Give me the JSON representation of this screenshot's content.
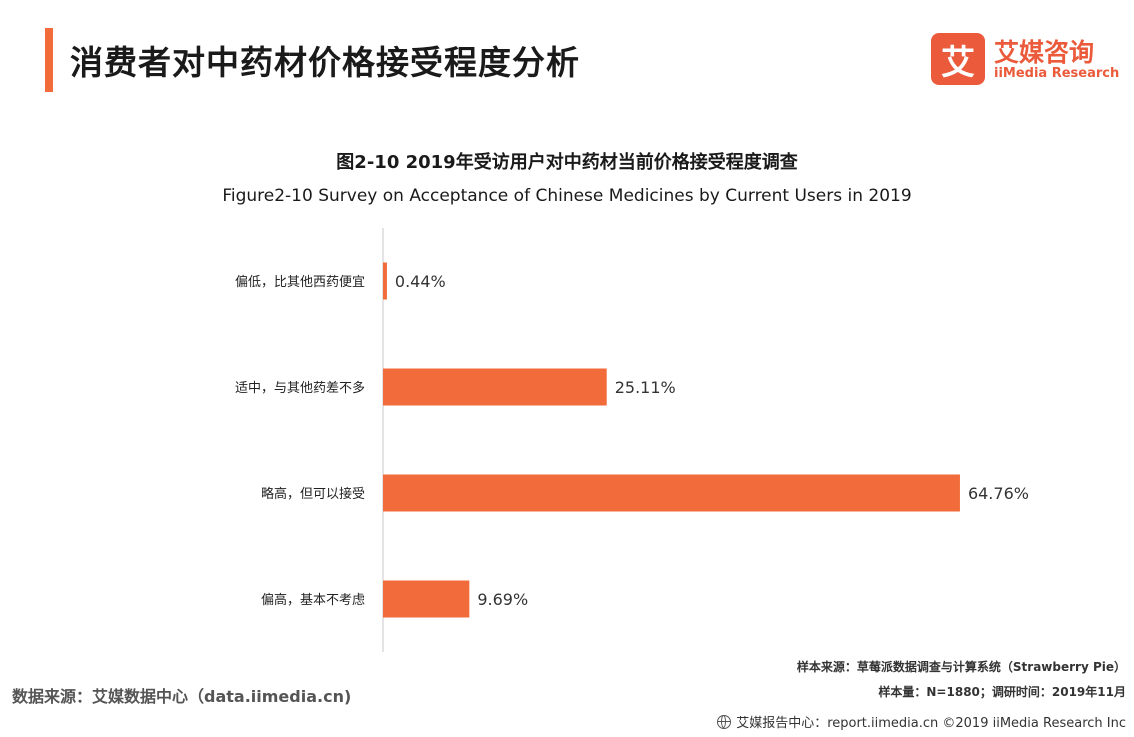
{
  "page_title": "消费者对中药材价格接受程度分析",
  "logo": {
    "mark": "艾",
    "name_cn": "艾媒咨询",
    "name_en": "iiMedia Research",
    "brand_color": "#ea5a3b"
  },
  "chart_data": {
    "type": "bar",
    "orientation": "horizontal",
    "title": "图2-10 2019年受访用户对中药材当前价格接受程度调查",
    "subtitle": "Figure2-10 Survey on Acceptance of Chinese Medicines by Current Users in 2019",
    "categories": [
      "偏低，比其他西药便宜",
      "适中，与其他药差不多",
      "略高，但可以接受",
      "偏高，基本不考虑"
    ],
    "values": [
      0.44,
      25.11,
      64.76,
      9.69
    ],
    "value_labels": [
      "0.44%",
      "25.11%",
      "64.76%",
      "9.69%"
    ],
    "unit": "%",
    "xlim": [
      0,
      66
    ],
    "grid": false,
    "bar_color": "#f26b3a"
  },
  "notes": {
    "sample_source": "样本来源：草莓派数据调查与计算系统（Strawberry Pie）",
    "sample_size": "样本量：N=1880；调研时间：2019年11月"
  },
  "source": "数据来源：艾媒数据中心（data.iimedia.cn)",
  "footer": {
    "text": "艾媒报告中心：report.iimedia.cn ©2019 iiMedia Research Inc",
    "icon": "globe-icon"
  }
}
